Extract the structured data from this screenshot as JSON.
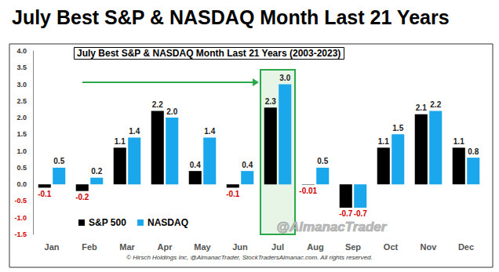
{
  "chart_data": {
    "type": "bar",
    "title": "July Best S&P & NASDAQ Month Last 21 Years",
    "subtitle": "July Best S&P & NASDAQ Month Last 21 Years (2003-2023)",
    "annotations": [
      "@AlmanacTrader",
      "© Hirsch Holdings Inc, @AlmanacTrader, StockTradersAlmanac.com. All rights reserved."
    ],
    "categories": [
      "Jan",
      "Feb",
      "Mar",
      "Apr",
      "May",
      "Jun",
      "Jul",
      "Aug",
      "Sep",
      "Oct",
      "Nov",
      "Dec"
    ],
    "series": [
      {
        "name": "S&P 500",
        "color": "#000000",
        "values": [
          -0.1,
          -0.2,
          1.1,
          2.2,
          0.4,
          -0.1,
          2.3,
          -0.01,
          -0.7,
          1.1,
          2.1,
          1.1
        ],
        "value_labels": [
          "-0.1",
          "-0.2",
          "1.1",
          "2.2",
          "0.4",
          "-0.1",
          "2.3",
          "-0.01",
          "-0.7",
          "1.1",
          "2.1",
          "1.1"
        ]
      },
      {
        "name": "NASDAQ",
        "color": "#1aa7ec",
        "values": [
          0.5,
          0.2,
          1.4,
          2.0,
          1.4,
          0.4,
          3.0,
          0.5,
          -0.7,
          1.5,
          2.2,
          0.8
        ],
        "value_labels": [
          "0.5",
          "0.2",
          "1.4",
          "2.0",
          "1.4",
          "0.4",
          "3.0",
          "0.5",
          "-0.7",
          "1.5",
          "2.2",
          "0.8"
        ]
      }
    ],
    "ylim": [
      -1.5,
      4.0
    ],
    "yticks": [
      {
        "value": -1.5,
        "label": "-1.5"
      },
      {
        "value": -1.0,
        "label": "-1.0"
      },
      {
        "value": -0.5,
        "label": "-0.5"
      },
      {
        "value": 0,
        "label": "0.0"
      },
      {
        "value": 0.5,
        "label": "0.5"
      },
      {
        "value": 1.0,
        "label": "1.0"
      },
      {
        "value": 1.5,
        "label": "1.5"
      },
      {
        "value": 2.0,
        "label": "2.0"
      },
      {
        "value": 2.5,
        "label": "2.5"
      },
      {
        "value": 3.0,
        "label": "3.0"
      },
      {
        "value": 3.5,
        "label": "3.5"
      },
      {
        "value": 4.0,
        "label": "4.0"
      }
    ],
    "grid": false,
    "legend": "lower left",
    "data_labels": true
  }
}
